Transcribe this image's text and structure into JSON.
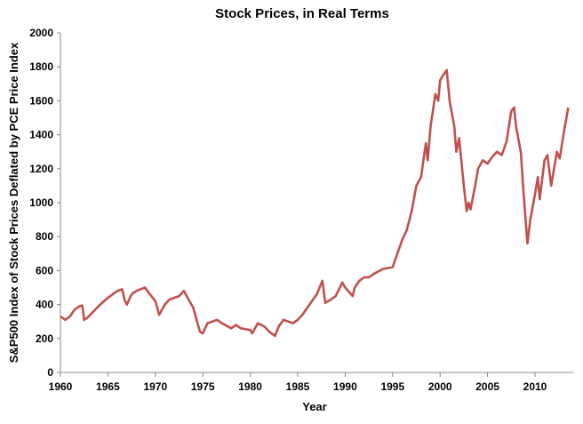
{
  "chart_data": {
    "type": "line",
    "title": "Stock Prices, in Real Terms",
    "xlabel": "Year",
    "ylabel": "S&P500 Index of Stock Prices Deflated by PCE Price Index",
    "xlim": [
      1960,
      2014
    ],
    "ylim": [
      0,
      2000
    ],
    "x_ticks": [
      "1960",
      "1965",
      "1970",
      "1975",
      "1980",
      "1985",
      "1990",
      "1995",
      "2000",
      "2005",
      "2010"
    ],
    "y_ticks": [
      "0",
      "200",
      "400",
      "600",
      "800",
      "1000",
      "1200",
      "1400",
      "1600",
      "1800",
      "2000"
    ],
    "grid": false,
    "legend": "none",
    "series": [
      {
        "color": "#c0504d",
        "x": [
          1960.0,
          1960.5,
          1961.0,
          1961.5,
          1962.0,
          1962.3,
          1962.5,
          1962.8,
          1963.5,
          1964.0,
          1965.0,
          1966.0,
          1966.5,
          1966.8,
          1967.0,
          1967.5,
          1968.0,
          1968.9,
          1969.3,
          1970.0,
          1970.4,
          1971.0,
          1971.5,
          1972.0,
          1972.5,
          1973.0,
          1973.5,
          1974.0,
          1974.7,
          1975.0,
          1975.5,
          1976.0,
          1976.5,
          1977.0,
          1978.0,
          1978.5,
          1979.0,
          1980.0,
          1980.2,
          1980.8,
          1981.5,
          1982.0,
          1982.6,
          1983.0,
          1983.5,
          1984.0,
          1984.5,
          1985.0,
          1985.5,
          1986.0,
          1986.5,
          1987.0,
          1987.6,
          1987.9,
          1988.5,
          1989.0,
          1989.7,
          1990.0,
          1990.8,
          1991.0,
          1991.5,
          1992.0,
          1992.5,
          1993.0,
          1994.0,
          1995.0,
          1995.5,
          1996.0,
          1996.5,
          1997.0,
          1997.5,
          1998.0,
          1998.5,
          1998.7,
          1999.0,
          1999.5,
          1999.8,
          2000.0,
          2000.3,
          2000.7,
          2001.0,
          2001.5,
          2001.7,
          2002.0,
          2002.5,
          2002.8,
          2003.0,
          2003.2,
          2003.7,
          2004.0,
          2004.5,
          2005.0,
          2005.5,
          2006.0,
          2006.5,
          2007.0,
          2007.5,
          2007.8,
          2008.0,
          2008.5,
          2008.8,
          2009.2,
          2009.5,
          2010.0,
          2010.3,
          2010.5,
          2011.0,
          2011.3,
          2011.7,
          2012.0,
          2012.3,
          2012.6,
          2013.0,
          2013.5
        ],
        "values": [
          330,
          310,
          330,
          370,
          390,
          395,
          310,
          320,
          360,
          390,
          440,
          480,
          490,
          420,
          400,
          460,
          480,
          500,
          470,
          420,
          340,
          400,
          430,
          440,
          450,
          480,
          430,
          380,
          240,
          230,
          290,
          300,
          310,
          290,
          260,
          280,
          260,
          250,
          230,
          290,
          270,
          240,
          215,
          270,
          310,
          300,
          290,
          310,
          340,
          380,
          420,
          460,
          540,
          410,
          430,
          450,
          530,
          500,
          450,
          500,
          540,
          560,
          560,
          580,
          610,
          620,
          700,
          780,
          840,
          950,
          1100,
          1150,
          1350,
          1250,
          1450,
          1640,
          1600,
          1720,
          1750,
          1780,
          1600,
          1450,
          1300,
          1380,
          1100,
          950,
          1000,
          960,
          1100,
          1200,
          1250,
          1230,
          1270,
          1300,
          1280,
          1360,
          1540,
          1560,
          1450,
          1300,
          1050,
          760,
          900,
          1050,
          1150,
          1020,
          1250,
          1280,
          1100,
          1200,
          1300,
          1260,
          1400,
          1560
        ]
      }
    ]
  }
}
